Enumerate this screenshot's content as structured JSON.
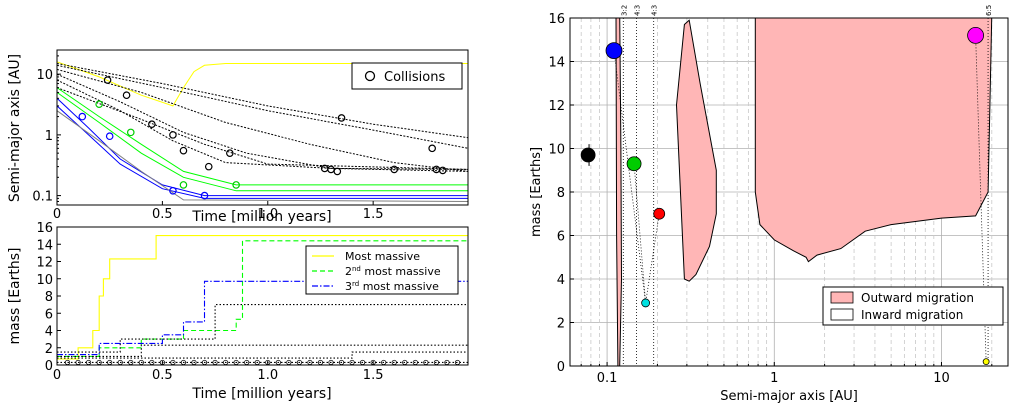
{
  "chart_data": [
    {
      "type": "line",
      "panel": "top-left",
      "xlabel": "Time [million years]",
      "ylabel": "Semi-major axis [AU]",
      "xlim": [
        0,
        1.95
      ],
      "ylim": [
        0.07,
        25
      ],
      "yscale": "log",
      "x_ticks": [
        0,
        0.5,
        1,
        1.5
      ],
      "x_tick_labels": [
        "0",
        "0.5",
        "1.0",
        "1.5"
      ],
      "y_ticks": [
        0.1,
        1,
        10
      ],
      "y_tick_labels": [
        "0.1",
        "1",
        "10"
      ],
      "legend": {
        "placement": "top-right",
        "entries": [
          "Collisions"
        ]
      },
      "series": [
        {
          "color": "#ffff00",
          "x": [
            0,
            0.2,
            0.4,
            0.55,
            0.6,
            0.65,
            0.7,
            0.8,
            1.0,
            1.95
          ],
          "y": [
            16,
            9,
            4.5,
            3,
            6,
            11,
            14,
            15,
            15,
            15
          ]
        },
        {
          "color": "#000000",
          "x": [
            0,
            0.5,
            1.0,
            1.5,
            1.95
          ],
          "y": [
            14,
            6,
            2.5,
            1.2,
            0.6
          ]
        },
        {
          "color": "#000000",
          "x": [
            0,
            0.4,
            0.8,
            1.2,
            1.6,
            1.95
          ],
          "y": [
            12,
            5,
            1.6,
            0.7,
            0.35,
            0.25
          ]
        },
        {
          "color": "#000000",
          "x": [
            0,
            0.3,
            0.6,
            0.9,
            1.3,
            1.95
          ],
          "y": [
            10,
            3.5,
            1.1,
            0.5,
            0.28,
            0.25
          ]
        },
        {
          "color": "#000000",
          "x": [
            0,
            0.3,
            0.55,
            0.8,
            1.3,
            1.95
          ],
          "y": [
            8,
            2.5,
            0.8,
            0.35,
            0.28,
            0.27
          ]
        },
        {
          "color": "#000000",
          "x": [
            0,
            0.5,
            1.0,
            1.5,
            1.95
          ],
          "y": [
            15,
            7,
            3,
            1.5,
            0.9
          ]
        },
        {
          "color": "#000000",
          "x": [
            0,
            0.4,
            0.7,
            1.0,
            1.95
          ],
          "y": [
            6,
            1.8,
            0.7,
            0.33,
            0.27
          ]
        },
        {
          "color": "#00ff00",
          "x": [
            0,
            0.2,
            0.4,
            0.6,
            0.85,
            1.95
          ],
          "y": [
            6,
            2,
            0.7,
            0.25,
            0.15,
            0.15
          ]
        },
        {
          "color": "#00ff00",
          "x": [
            0,
            0.2,
            0.4,
            0.6,
            0.85,
            1.95
          ],
          "y": [
            5,
            1.6,
            0.5,
            0.2,
            0.12,
            0.12
          ]
        },
        {
          "color": "#0000ff",
          "x": [
            0,
            0.15,
            0.3,
            0.5,
            0.7,
            1.95
          ],
          "y": [
            4,
            1.3,
            0.4,
            0.15,
            0.1,
            0.1
          ]
        },
        {
          "color": "#0000ff",
          "x": [
            0,
            0.15,
            0.3,
            0.5,
            0.7,
            1.95
          ],
          "y": [
            3,
            1.0,
            0.33,
            0.13,
            0.09,
            0.09
          ]
        },
        {
          "color": "#808080",
          "x": [
            0,
            0.2,
            0.4,
            0.6,
            1.95
          ],
          "y": [
            2.5,
            0.8,
            0.25,
            0.085,
            0.08
          ]
        }
      ],
      "collisions": [
        {
          "x": 0.24,
          "y": 8
        },
        {
          "x": 0.33,
          "y": 4.5
        },
        {
          "x": 0.45,
          "y": 1.5
        },
        {
          "x": 0.55,
          "y": 1.0
        },
        {
          "x": 0.6,
          "y": 0.55
        },
        {
          "x": 0.72,
          "y": 0.3
        },
        {
          "x": 0.82,
          "y": 0.5
        },
        {
          "x": 1.35,
          "y": 1.9
        },
        {
          "x": 1.27,
          "y": 0.28
        },
        {
          "x": 1.3,
          "y": 0.27
        },
        {
          "x": 1.33,
          "y": 0.25
        },
        {
          "x": 1.6,
          "y": 0.27
        },
        {
          "x": 1.78,
          "y": 0.6
        },
        {
          "x": 1.8,
          "y": 0.27
        },
        {
          "x": 1.83,
          "y": 0.26
        },
        {
          "x": 0.2,
          "y": 3.2,
          "color": "#00cc00"
        },
        {
          "x": 0.35,
          "y": 1.1,
          "color": "#00cc00"
        },
        {
          "x": 0.6,
          "y": 0.15,
          "color": "#00cc00"
        },
        {
          "x": 0.85,
          "y": 0.15,
          "color": "#00cc00"
        },
        {
          "x": 0.12,
          "y": 2.0,
          "color": "#0000ff"
        },
        {
          "x": 0.25,
          "y": 0.95,
          "color": "#0000ff"
        },
        {
          "x": 0.55,
          "y": 0.12,
          "color": "#0000ff"
        },
        {
          "x": 0.7,
          "y": 0.1,
          "color": "#0000ff"
        }
      ]
    },
    {
      "type": "line",
      "panel": "bottom-left",
      "xlabel": "Time [million years]",
      "ylabel": "mass [Earths]",
      "xlim": [
        0,
        1.95
      ],
      "ylim": [
        0,
        16
      ],
      "x_ticks": [
        0,
        0.5,
        1,
        1.5
      ],
      "x_tick_labels": [
        "0",
        "0.5",
        "1.0",
        "1.5"
      ],
      "y_ticks": [
        0,
        2,
        4,
        6,
        8,
        10,
        12,
        14,
        16
      ],
      "y_tick_labels": [
        "0",
        "2",
        "4",
        "6",
        "8",
        "10",
        "12",
        "14",
        "16"
      ],
      "legend": {
        "placement": "center-right",
        "entries": [
          "Most massive",
          "2nd most massive",
          "3rd most massive"
        ]
      },
      "series": [
        {
          "name": "Most massive",
          "color": "#ffff00",
          "style": "solid",
          "x": [
            0,
            0.1,
            0.1,
            0.17,
            0.17,
            0.2,
            0.2,
            0.22,
            0.22,
            0.25,
            0.25,
            0.47,
            0.47,
            1.95
          ],
          "y": [
            0.7,
            0.7,
            2,
            2,
            4,
            4,
            8,
            8,
            10,
            10,
            12.3,
            12.3,
            15,
            15
          ]
        },
        {
          "name": "2nd most massive",
          "color": "#00ff00",
          "style": "dashed",
          "x": [
            0,
            0.2,
            0.2,
            0.4,
            0.4,
            0.6,
            0.6,
            0.85,
            0.85,
            0.88,
            0.88,
            1.95
          ],
          "y": [
            1,
            1,
            2,
            2,
            3,
            3,
            4,
            4,
            5.3,
            5.3,
            14.4,
            14.4
          ]
        },
        {
          "name": "3rd most massive",
          "color": "#0000ff",
          "style": "dashdot",
          "x": [
            0,
            0.2,
            0.2,
            0.5,
            0.5,
            0.6,
            0.6,
            0.7,
            0.7,
            1.95
          ],
          "y": [
            1.2,
            1.2,
            2.5,
            2.5,
            3.5,
            3.5,
            5,
            5,
            9.7,
            9.7
          ]
        },
        {
          "color": "#000000",
          "style": "dotted",
          "x": [
            0,
            0.3,
            0.3,
            0.75,
            0.75,
            1.95
          ],
          "y": [
            1.5,
            1.5,
            3,
            3,
            7,
            7
          ]
        },
        {
          "color": "#000000",
          "style": "dotted",
          "x": [
            0,
            0.4,
            0.4,
            1.95
          ],
          "y": [
            1,
            1,
            2.3,
            2.3
          ]
        },
        {
          "color": "#000000",
          "style": "dotted",
          "x": [
            0,
            1.95
          ],
          "y": [
            0.3,
            0.3
          ]
        },
        {
          "color": "#000000",
          "style": "dotted",
          "x": [
            0,
            1.4,
            1.4,
            1.95
          ],
          "y": [
            0.8,
            0.8,
            1.5,
            1.5
          ]
        }
      ],
      "collisions_x": [
        0.05,
        0.1,
        0.15,
        0.2,
        0.25,
        0.3,
        0.35,
        0.4,
        0.45,
        0.5,
        0.55,
        0.6,
        0.65,
        0.7,
        0.75,
        0.8,
        0.85,
        0.9,
        0.95,
        1.0,
        1.05,
        1.1,
        1.15,
        1.2,
        1.25,
        1.3,
        1.35,
        1.4,
        1.45,
        1.5,
        1.55,
        1.6,
        1.65,
        1.7,
        1.75,
        1.8,
        1.85,
        1.9
      ]
    },
    {
      "type": "scatter",
      "panel": "right",
      "xlabel": "Semi-major axis [AU]",
      "ylabel": "mass [Earths]",
      "xscale": "log",
      "xlim": [
        0.06,
        25
      ],
      "ylim": [
        0,
        16
      ],
      "x_ticks": [
        0.1,
        1,
        10
      ],
      "x_tick_labels": [
        "0.1",
        "1",
        "10"
      ],
      "y_ticks": [
        0,
        2,
        4,
        6,
        8,
        10,
        12,
        14,
        16
      ],
      "y_tick_labels": [
        "0",
        "2",
        "4",
        "6",
        "8",
        "10",
        "12",
        "14",
        "16"
      ],
      "legend": {
        "placement": "bottom-right",
        "entries": [
          "Outward migration",
          "Inward migration"
        ]
      },
      "resonances": [
        {
          "label": "3:2",
          "x": 0.125
        },
        {
          "label": "4:3",
          "x": 0.15
        },
        {
          "label": "4:3",
          "x": 0.19
        },
        {
          "label": "6:5",
          "x": 19
        }
      ],
      "colors": {
        "outward": "#ffb6b6",
        "inward": "#ffffff"
      },
      "planets": [
        {
          "x": 0.11,
          "y": 14.5,
          "color": "#0000ff",
          "size": 16
        },
        {
          "x": 0.077,
          "y": 9.7,
          "color": "#000000",
          "size": 14
        },
        {
          "x": 0.145,
          "y": 9.3,
          "color": "#00cc00",
          "size": 14
        },
        {
          "x": 0.205,
          "y": 7.0,
          "color": "#ff0000",
          "size": 11
        },
        {
          "x": 0.17,
          "y": 2.9,
          "color": "#00e0e0",
          "size": 8
        },
        {
          "x": 16,
          "y": 15.2,
          "color": "#ff00ff",
          "size": 16
        },
        {
          "x": 18.5,
          "y": 0.2,
          "color": "#ffff00",
          "size": 6
        }
      ]
    }
  ]
}
